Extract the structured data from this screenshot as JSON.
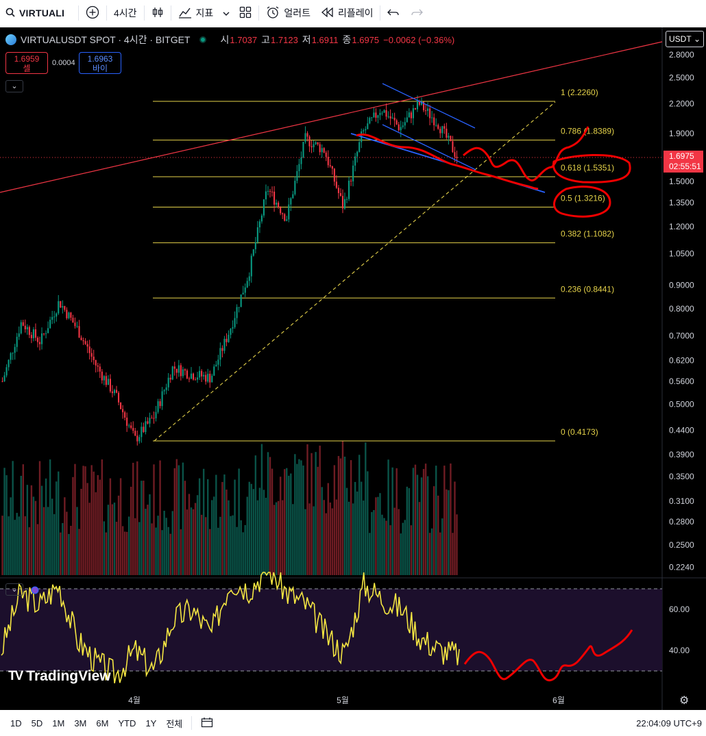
{
  "toolbar": {
    "symbol": "VIRTUALI",
    "interval": "4시간",
    "indicators": "지표",
    "alerts": "얼러트",
    "replay": "리플레이",
    "icons": [
      "search-icon",
      "add-symbol-icon",
      "candle-type-icon",
      "indicators-icon",
      "chevron-down-icon",
      "layout-icon",
      "alert-icon",
      "replay-icon",
      "undo-icon",
      "redo-icon"
    ]
  },
  "legend": {
    "title": "VIRTUALUSDT SPOT · 4시간 · BITGET",
    "open_label": "시",
    "open": "1.7037",
    "high_label": "고",
    "high": "1.7123",
    "low_label": "저",
    "low": "1.6911",
    "close_label": "종",
    "close": "1.6975",
    "change": "−0.0062 (−0.36%)"
  },
  "trade": {
    "sell_price": "1.6959",
    "sell_label": "셀",
    "spread": "0.0004",
    "buy_price": "1.6963",
    "buy_label": "바이"
  },
  "currency": "USDT",
  "last_price": {
    "price": "1.6975",
    "countdown": "02:55:51"
  },
  "branding": "TradingView",
  "bottom_bar": {
    "ranges": [
      "1D",
      "5D",
      "1M",
      "3M",
      "6M",
      "YTD",
      "1Y",
      "전체"
    ],
    "clock": "22:04:09 UTC+9"
  },
  "colors": {
    "background": "#000000",
    "fib_line": "#e6d34a",
    "trendline_red": "#f23645",
    "channel_blue": "#2962ff",
    "rsi_line": "#f5e642",
    "up": "#089981",
    "down": "#f23645"
  },
  "chart_data": {
    "type": "candlestick",
    "symbol": "VIRTUALUSDT",
    "scale": "log",
    "y_axis_ticks": [
      "2.8000",
      "2.5000",
      "2.2000",
      "1.9000",
      "1.5000",
      "1.3500",
      "1.2000",
      "1.0500",
      "0.9000",
      "0.8000",
      "0.7000",
      "0.6200",
      "0.5600",
      "0.5000",
      "0.4400",
      "0.3900",
      "0.3500",
      "0.3100",
      "0.2800",
      "0.2500",
      "0.2240"
    ],
    "x_axis_ticks": [
      "4월",
      "5월",
      "6월"
    ],
    "price_path": [
      {
        "t": "~03-20",
        "p": 0.56
      },
      {
        "t": "~03-25",
        "p": 0.75
      },
      {
        "t": "~03-28",
        "p": 0.68
      },
      {
        "t": "~04-01",
        "p": 0.83
      },
      {
        "t": "~04-05",
        "p": 0.72
      },
      {
        "t": "~04-08",
        "p": 0.6
      },
      {
        "t": "~04-12",
        "p": 0.52
      },
      {
        "t": "~04-16",
        "p": 0.42
      },
      {
        "t": "~04-18",
        "p": 0.47
      },
      {
        "t": "~04-22",
        "p": 0.6
      },
      {
        "t": "~04-25",
        "p": 0.58
      },
      {
        "t": "~04-29",
        "p": 0.57
      },
      {
        "t": "~05-02",
        "p": 0.72
      },
      {
        "t": "~05-04",
        "p": 0.95
      },
      {
        "t": "~05-06",
        "p": 1.45
      },
      {
        "t": "~05-08",
        "p": 1.25
      },
      {
        "t": "~05-10",
        "p": 1.85
      },
      {
        "t": "~05-13",
        "p": 1.75
      },
      {
        "t": "~05-15",
        "p": 1.32
      },
      {
        "t": "~05-17",
        "p": 1.9
      },
      {
        "t": "~05-19",
        "p": 2.15
      },
      {
        "t": "~05-21",
        "p": 1.95
      },
      {
        "t": "~05-22",
        "p": 2.2
      },
      {
        "t": "~05-24",
        "p": 2.0
      },
      {
        "t": "~05-26",
        "p": 1.6975
      }
    ],
    "fibonacci": [
      {
        "level": "1",
        "price": "2.2260"
      },
      {
        "level": "0.786",
        "price": "1.8389"
      },
      {
        "level": "0.618",
        "price": "1.5351"
      },
      {
        "level": "0.5",
        "price": "1.3216"
      },
      {
        "level": "0.382",
        "price": "1.1082"
      },
      {
        "level": "0.236",
        "price": "0.8441"
      },
      {
        "level": "0",
        "price": "0.4173"
      }
    ],
    "rsi": {
      "ticks": [
        "60.00",
        "40.00"
      ],
      "bands": [
        70,
        30
      ],
      "path": [
        40,
        68,
        62,
        72,
        45,
        34,
        28,
        40,
        30,
        55,
        60,
        48,
        74,
        70,
        80,
        68,
        62,
        48,
        38,
        72,
        65,
        60,
        46,
        40,
        38
      ],
      "projection": [
        38,
        30,
        27,
        34,
        36,
        28,
        33,
        38,
        50
      ]
    },
    "annotations": [
      "red ascending trendline",
      "yellow dashed support line",
      "blue descending channel",
      "red hand-drawn price projection",
      "red circles at 0.618 and 0.5 levels"
    ]
  }
}
